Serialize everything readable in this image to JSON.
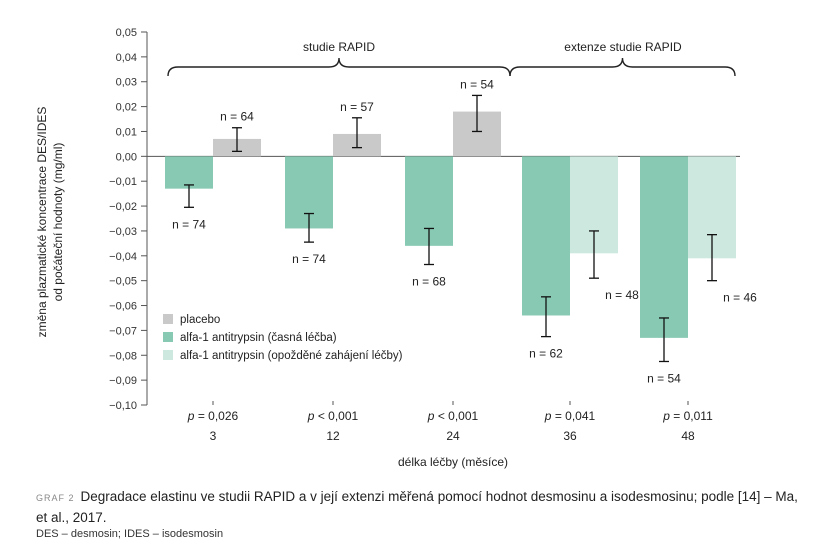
{
  "chart_data": {
    "type": "bar",
    "ylabel_line1": "změna plazmatické koncentrace DES/IDES",
    "ylabel_line2": "od počáteční hodnoty (mg/ml)",
    "xlabel": "délka léčby (měsíce)",
    "ylim": [
      -0.1,
      0.05
    ],
    "yticks": [
      "0,05",
      "0,04",
      "0,03",
      "0,02",
      "0,01",
      "0,00",
      "−0,01",
      "−0,02",
      "−0,03",
      "−0,04",
      "−0,05",
      "−0,06",
      "−0,07",
      "−0,08",
      "−0,09",
      "−0,10"
    ],
    "ytick_values": [
      0.05,
      0.04,
      0.03,
      0.02,
      0.01,
      0.0,
      -0.01,
      -0.02,
      -0.03,
      -0.04,
      -0.05,
      -0.06,
      -0.07,
      -0.08,
      -0.09,
      -0.1
    ],
    "categories": [
      "3",
      "12",
      "24",
      "36",
      "48"
    ],
    "p_values": [
      {
        "op": " = 0,026"
      },
      {
        "op": " < 0,001"
      },
      {
        "op": " < 0,001"
      },
      {
        "op": " = 0,041"
      },
      {
        "op": " = 0,011"
      }
    ],
    "p_symbol": "p",
    "brackets": [
      {
        "label": "studie RAPID"
      },
      {
        "label": "extenze studie RAPID"
      }
    ],
    "series": [
      {
        "name": "placebo",
        "color": "#c9c9c9",
        "values": [
          0.007,
          0.009,
          0.018,
          null,
          null
        ],
        "err_low": [
          0.002,
          0.0035,
          0.01,
          null,
          null
        ],
        "err_high": [
          0.0115,
          0.0155,
          0.0245,
          null,
          null
        ],
        "n": [
          "n = 64",
          "n = 57",
          "n = 54",
          null,
          null
        ]
      },
      {
        "name": "alfa-1 antitrypsin (časná léčba)",
        "color": "#88c9b3",
        "values": [
          -0.013,
          -0.029,
          -0.036,
          -0.064,
          -0.073
        ],
        "err_low": [
          -0.0205,
          -0.0345,
          -0.0435,
          -0.0725,
          -0.0825
        ],
        "err_high": [
          -0.0115,
          -0.023,
          -0.029,
          -0.0565,
          -0.065
        ],
        "n": [
          "n = 74",
          "n = 74",
          "n = 68",
          "n = 62",
          "n = 54"
        ]
      },
      {
        "name": "alfa-1 antitrypsin (opožděné zahájení léčby)",
        "color": "#cde9df",
        "values": [
          null,
          null,
          null,
          -0.039,
          -0.041
        ],
        "err_low": [
          null,
          null,
          null,
          -0.049,
          -0.05
        ],
        "err_high": [
          null,
          null,
          null,
          -0.03,
          -0.0315
        ],
        "n": [
          null,
          null,
          null,
          "n = 48",
          "n = 46"
        ]
      }
    ],
    "legend_position": "lower-left",
    "grid": false
  },
  "caption": {
    "tag": "GRAF 2",
    "text": "Degradace elastinu ve studii RAPID a v její extenzi měřená pomocí hodnot desmosinu a isodesmosinu; podle [14] – Ma, et al., 2017.",
    "note": "DES – desmosin; IDES – isodesmosin"
  }
}
